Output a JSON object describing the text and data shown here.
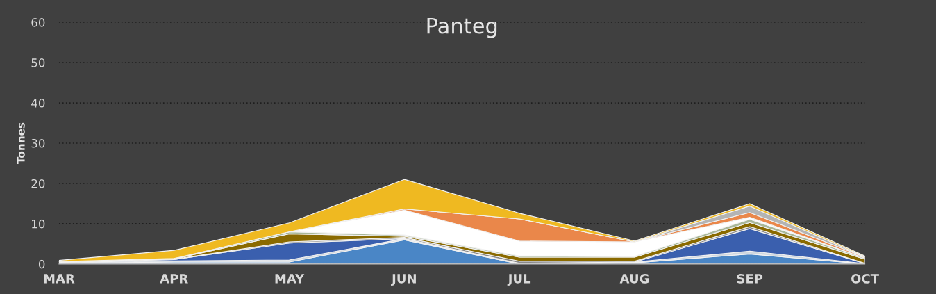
{
  "chart_data": {
    "type": "area",
    "title": "Panteg",
    "ylabel": "Tonnes",
    "stacked": true,
    "grid": "y",
    "legend": false,
    "categories": [
      "MAR",
      "APR",
      "MAY",
      "JUN",
      "JUL",
      "AUG",
      "SEP",
      "OCT"
    ],
    "ylim": [
      0,
      60
    ],
    "yticks": [
      0,
      10,
      20,
      30,
      40,
      50,
      60
    ],
    "series": [
      {
        "color": "#4a86c6",
        "values": [
          0.2,
          0.5,
          0.5,
          6,
          0,
          0.3,
          2.5,
          0
        ]
      },
      {
        "color": "#d0d8e0",
        "values": [
          0.2,
          0.3,
          0.5,
          0.3,
          0.2,
          0.2,
          0.7,
          0.1
        ]
      },
      {
        "color": "#3a5fae",
        "values": [
          0,
          0.3,
          4.2,
          0,
          0,
          0,
          5.6,
          0
        ]
      },
      {
        "color": "#8a8a8a",
        "values": [
          0.1,
          0.1,
          0.3,
          0.3,
          0.5,
          0.2,
          0.5,
          0.1
        ]
      },
      {
        "color": "#8a6a00",
        "values": [
          0,
          0.1,
          2,
          0.3,
          1.0,
          1.0,
          1.0,
          1.0
        ]
      },
      {
        "color": "#a9b89a",
        "values": [
          0.1,
          0.1,
          0.5,
          0.3,
          0.3,
          0.2,
          0.8,
          0.3
        ]
      },
      {
        "color": "#ffffff",
        "values": [
          0,
          0,
          0,
          6.2,
          3.7,
          3.6,
          0.5,
          0
        ]
      },
      {
        "color": "#ea874a",
        "values": [
          0,
          0,
          0,
          0.3,
          5.5,
          0,
          1.2,
          0.2
        ]
      },
      {
        "color": "#b4b4b4",
        "values": [
          0,
          0,
          0,
          0,
          0,
          0,
          1.6,
          0.1
        ]
      },
      {
        "color": "#efb921",
        "values": [
          0.3,
          2.0,
          2.2,
          7.3,
          1.4,
          0.2,
          0.6,
          0.2
        ]
      }
    ]
  }
}
